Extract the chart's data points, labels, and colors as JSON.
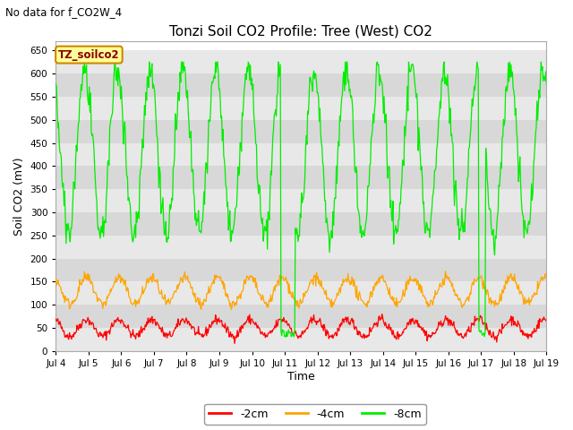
{
  "title": "Tonzi Soil CO2 Profile: Tree (West) CO2",
  "subtitle": "No data for f_CO2W_4",
  "ylabel": "Soil CO2 (mV)",
  "xlabel": "Time",
  "ylim": [
    0,
    670
  ],
  "yticks": [
    0,
    50,
    100,
    150,
    200,
    250,
    300,
    350,
    400,
    450,
    500,
    550,
    600,
    650
  ],
  "bg_color": "#ffffff",
  "plot_bg_color": "#ffffff",
  "legend_label_2cm": "-2cm",
  "legend_label_4cm": "-4cm",
  "legend_label_8cm": "-8cm",
  "color_2cm": "#ff0000",
  "color_4cm": "#ffa500",
  "color_8cm": "#00ee00",
  "legend_box_facecolor": "#ffff99",
  "legend_box_edgecolor": "#cc8800",
  "legend_box_label": "TZ_soilco2",
  "x_tick_labels": [
    "Jul 4",
    "Jul 5",
    "Jul 6",
    "Jul 7",
    "Jul 8",
    "Jul 9",
    "Jul 10",
    "Jul 11",
    "Jul 12",
    "Jul 13",
    "Jul 14",
    "Jul 15",
    "Jul 16",
    "Jul 17",
    "Jul 18",
    "Jul 19"
  ],
  "band_colors": [
    "#e8e8e8",
    "#d8d8d8"
  ],
  "figsize": [
    6.4,
    4.8
  ],
  "dpi": 100
}
